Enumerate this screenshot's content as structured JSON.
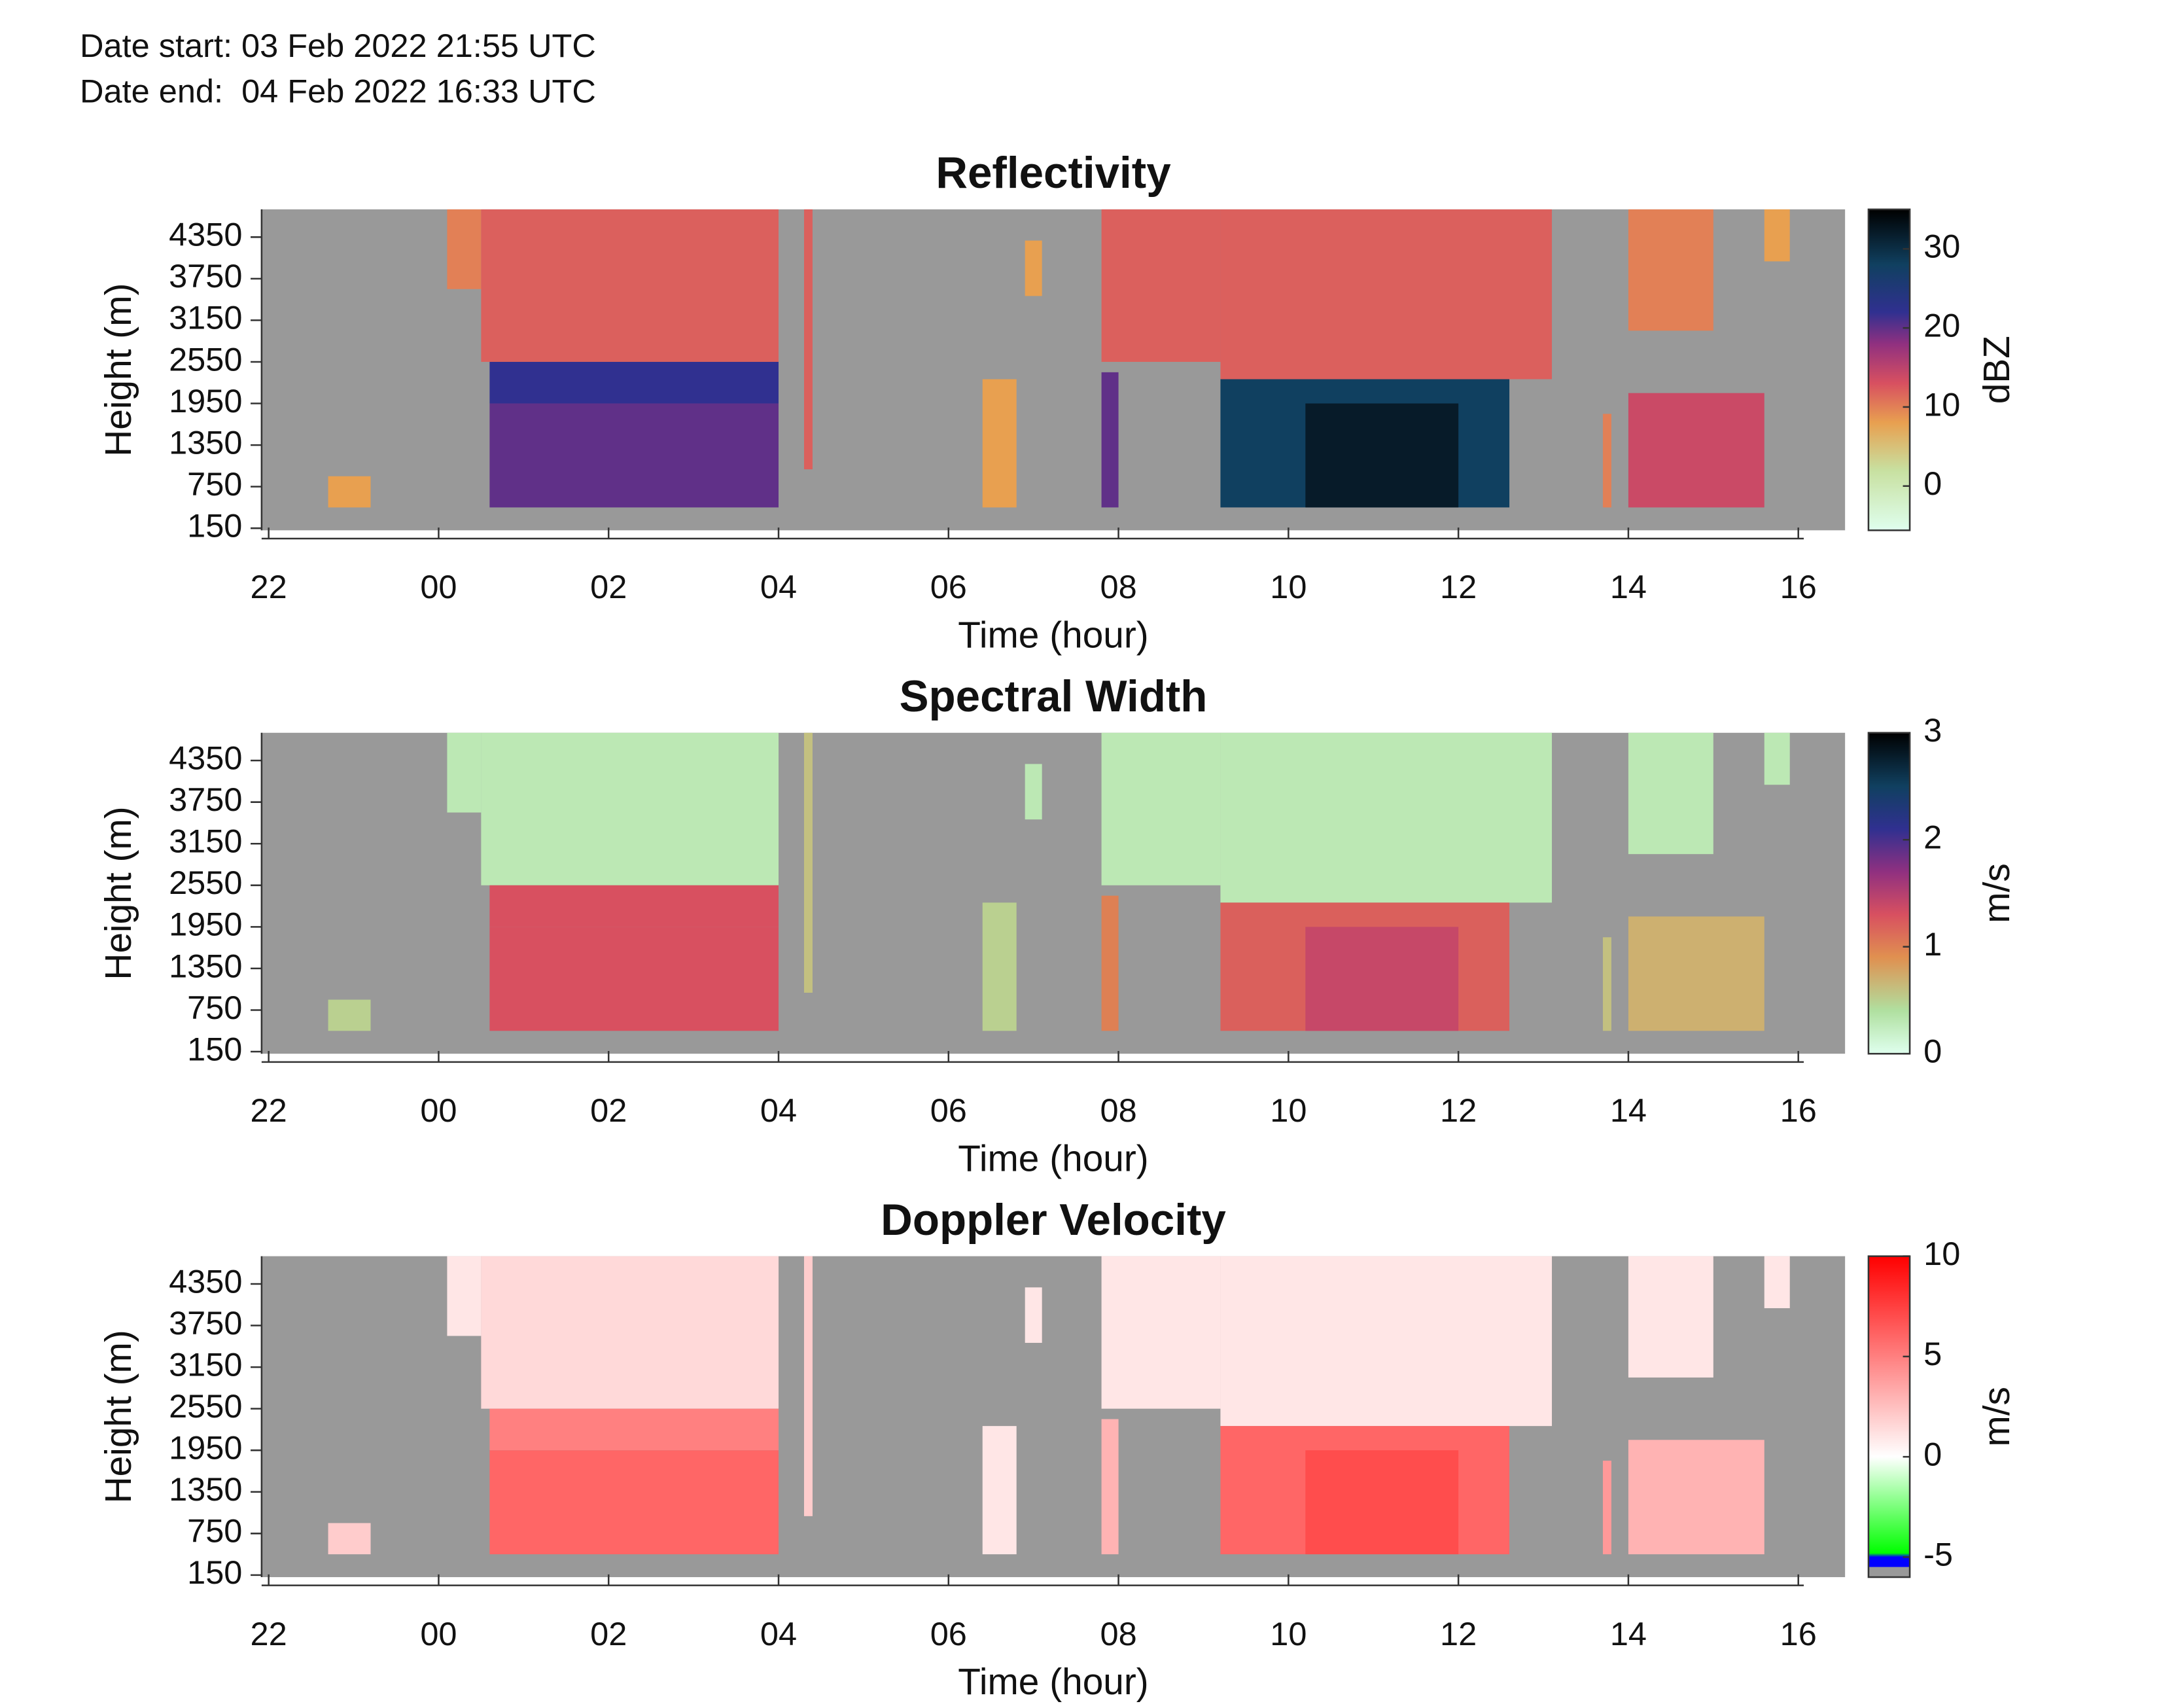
{
  "header": {
    "start": "Date start: 03 Feb 2022 21:55 UTC",
    "end": "Date end:  04 Feb 2022 16:33 UTC"
  },
  "chart_data": [
    {
      "type": "heatmap",
      "title": "Reflectivity",
      "xlabel": "Time (hour)",
      "ylabel": "Height (m)",
      "clabel": "dBZ",
      "xlim": [
        -2.083,
        16.55
      ],
      "ylim": [
        120,
        4750
      ],
      "xticks": [
        {
          "value": -2,
          "label": "22"
        },
        {
          "value": 0,
          "label": "00"
        },
        {
          "value": 2,
          "label": "02"
        },
        {
          "value": 4,
          "label": "04"
        },
        {
          "value": 6,
          "label": "06"
        },
        {
          "value": 8,
          "label": "08"
        },
        10,
        12,
        14,
        16
      ],
      "yticks": [
        150,
        750,
        1350,
        1950,
        2550,
        3150,
        3750,
        4350
      ],
      "clim": [
        -5.6,
        35
      ],
      "cticks": [
        0,
        10,
        20,
        30
      ],
      "background": "#999999",
      "colormap": [
        {
          "value": -5.6,
          "color": "#dfffee"
        },
        {
          "value": 2,
          "color": "#c8e0a0"
        },
        {
          "value": 8,
          "color": "#e8a050"
        },
        {
          "value": 13,
          "color": "#d85060"
        },
        {
          "value": 18,
          "color": "#903080"
        },
        {
          "value": 22,
          "color": "#303090"
        },
        {
          "value": 28,
          "color": "#104060"
        },
        {
          "value": 35,
          "color": "#000000"
        }
      ],
      "cells": [
        {
          "x": [
            -1.3,
            -0.8
          ],
          "y": [
            450,
            900
          ],
          "value": 8
        },
        {
          "x": [
            0.1,
            0.5
          ],
          "y": [
            3600,
            4750
          ],
          "value": 10
        },
        {
          "x": [
            0.5,
            4.0
          ],
          "y": [
            2550,
            4750
          ],
          "value": 12
        },
        {
          "x": [
            0.6,
            4.0
          ],
          "y": [
            1950,
            2550
          ],
          "value": 22
        },
        {
          "x": [
            0.6,
            4.0
          ],
          "y": [
            450,
            1950
          ],
          "value": 20
        },
        {
          "x": [
            4.3,
            4.4
          ],
          "y": [
            1000,
            4750
          ],
          "value": 12
        },
        {
          "x": [
            6.4,
            6.8
          ],
          "y": [
            450,
            2300
          ],
          "value": 8
        },
        {
          "x": [
            6.9,
            7.1
          ],
          "y": [
            3500,
            4300
          ],
          "value": 8
        },
        {
          "x": [
            7.8,
            9.2
          ],
          "y": [
            2550,
            4750
          ],
          "value": 12
        },
        {
          "x": [
            7.8,
            8.0
          ],
          "y": [
            450,
            2400
          ],
          "value": 20
        },
        {
          "x": [
            9.2,
            13.1
          ],
          "y": [
            2300,
            4750
          ],
          "value": 12
        },
        {
          "x": [
            9.2,
            12.6
          ],
          "y": [
            450,
            2300
          ],
          "value": 28
        },
        {
          "x": [
            10.2,
            12.0
          ],
          "y": [
            450,
            1950
          ],
          "value": 32
        },
        {
          "x": [
            13.7,
            13.8
          ],
          "y": [
            450,
            1800
          ],
          "value": 10
        },
        {
          "x": [
            14.0,
            15.6
          ],
          "y": [
            450,
            2100
          ],
          "value": 14
        },
        {
          "x": [
            14.0,
            15.0
          ],
          "y": [
            3000,
            4750
          ],
          "value": 10
        },
        {
          "x": [
            15.6,
            15.9
          ],
          "y": [
            4000,
            4750
          ],
          "value": 8
        }
      ]
    },
    {
      "type": "heatmap",
      "title": "Spectral Width",
      "xlabel": "Time (hour)",
      "ylabel": "Height (m)",
      "clabel": "m/s",
      "xlim": [
        -2.083,
        16.55
      ],
      "ylim": [
        120,
        4750
      ],
      "xticks": [
        {
          "value": -2,
          "label": "22"
        },
        {
          "value": 0,
          "label": "00"
        },
        {
          "value": 2,
          "label": "02"
        },
        {
          "value": 4,
          "label": "04"
        },
        {
          "value": 6,
          "label": "06"
        },
        {
          "value": 8,
          "label": "08"
        },
        10,
        12,
        14,
        16
      ],
      "yticks": [
        150,
        750,
        1350,
        1950,
        2550,
        3150,
        3750,
        4350
      ],
      "clim": [
        0,
        3
      ],
      "cticks": [
        0,
        1,
        2,
        3
      ],
      "background": "#999999",
      "colormap": [
        {
          "value": 0,
          "color": "#dfffee"
        },
        {
          "value": 0.4,
          "color": "#b0e0a0"
        },
        {
          "value": 0.9,
          "color": "#e09050"
        },
        {
          "value": 1.3,
          "color": "#d85060"
        },
        {
          "value": 1.7,
          "color": "#903080"
        },
        {
          "value": 2.1,
          "color": "#303090"
        },
        {
          "value": 2.5,
          "color": "#104060"
        },
        {
          "value": 3,
          "color": "#000000"
        }
      ],
      "cells": [
        {
          "x": [
            -1.3,
            -0.8
          ],
          "y": [
            450,
            900
          ],
          "value": 0.5
        },
        {
          "x": [
            0.1,
            0.5
          ],
          "y": [
            3600,
            4750
          ],
          "value": 0.3
        },
        {
          "x": [
            0.5,
            4.0
          ],
          "y": [
            2550,
            4750
          ],
          "value": 0.3
        },
        {
          "x": [
            0.6,
            4.0
          ],
          "y": [
            1950,
            2550
          ],
          "value": 1.3
        },
        {
          "x": [
            0.6,
            4.0
          ],
          "y": [
            450,
            1950
          ],
          "value": 1.3
        },
        {
          "x": [
            4.3,
            4.4
          ],
          "y": [
            1000,
            4750
          ],
          "value": 0.6
        },
        {
          "x": [
            6.4,
            6.8
          ],
          "y": [
            450,
            2300
          ],
          "value": 0.5
        },
        {
          "x": [
            6.9,
            7.1
          ],
          "y": [
            3500,
            4300
          ],
          "value": 0.3
        },
        {
          "x": [
            7.8,
            9.2
          ],
          "y": [
            2550,
            4750
          ],
          "value": 0.3
        },
        {
          "x": [
            7.8,
            8.0
          ],
          "y": [
            450,
            2400
          ],
          "value": 1.0
        },
        {
          "x": [
            9.2,
            13.1
          ],
          "y": [
            2300,
            4750
          ],
          "value": 0.3
        },
        {
          "x": [
            9.2,
            12.6
          ],
          "y": [
            450,
            2300
          ],
          "value": 1.2
        },
        {
          "x": [
            10.2,
            12.0
          ],
          "y": [
            450,
            1950
          ],
          "value": 1.4
        },
        {
          "x": [
            13.7,
            13.8
          ],
          "y": [
            450,
            1800
          ],
          "value": 0.6
        },
        {
          "x": [
            14.0,
            15.6
          ],
          "y": [
            450,
            2100
          ],
          "value": 0.7
        },
        {
          "x": [
            14.0,
            15.0
          ],
          "y": [
            3000,
            4750
          ],
          "value": 0.3
        },
        {
          "x": [
            15.6,
            15.9
          ],
          "y": [
            4000,
            4750
          ],
          "value": 0.3
        }
      ]
    },
    {
      "type": "heatmap",
      "title": "Doppler Velocity",
      "xlabel": "Time (hour)",
      "ylabel": "Height (m)",
      "clabel": "m/s",
      "xlim": [
        -2.083,
        16.55
      ],
      "ylim": [
        120,
        4750
      ],
      "xticks": [
        {
          "value": -2,
          "label": "22"
        },
        {
          "value": 0,
          "label": "00"
        },
        {
          "value": 2,
          "label": "02"
        },
        {
          "value": 4,
          "label": "04"
        },
        {
          "value": 6,
          "label": "06"
        },
        {
          "value": 8,
          "label": "08"
        },
        10,
        12,
        14,
        16
      ],
      "yticks": [
        150,
        750,
        1350,
        1950,
        2550,
        3150,
        3750,
        4350
      ],
      "clim": [
        -6,
        10
      ],
      "cticks": [
        -5,
        0,
        5,
        10
      ],
      "background": "#999999",
      "colormap": [
        {
          "value": -6,
          "color": "#999999"
        },
        {
          "value": -5.5,
          "color": "#999999"
        },
        {
          "value": -5.5,
          "color": "#0000ff"
        },
        {
          "value": -5,
          "color": "#0000ff"
        },
        {
          "value": -4.8,
          "color": "#00ff00"
        },
        {
          "value": 0,
          "color": "#ffffff"
        },
        {
          "value": 10,
          "color": "#ff0000"
        }
      ],
      "cells": [
        {
          "x": [
            -1.3,
            -0.8
          ],
          "y": [
            450,
            900
          ],
          "value": 2
        },
        {
          "x": [
            0.1,
            0.5
          ],
          "y": [
            3600,
            4750
          ],
          "value": 1
        },
        {
          "x": [
            0.5,
            4.0
          ],
          "y": [
            2550,
            4750
          ],
          "value": 1.5
        },
        {
          "x": [
            0.6,
            4.0
          ],
          "y": [
            1950,
            2550
          ],
          "value": 5
        },
        {
          "x": [
            0.6,
            4.0
          ],
          "y": [
            450,
            1950
          ],
          "value": 6
        },
        {
          "x": [
            4.3,
            4.4
          ],
          "y": [
            1000,
            4750
          ],
          "value": 2
        },
        {
          "x": [
            6.4,
            6.8
          ],
          "y": [
            450,
            2300
          ],
          "value": 1
        },
        {
          "x": [
            6.9,
            7.1
          ],
          "y": [
            3500,
            4300
          ],
          "value": 1
        },
        {
          "x": [
            7.8,
            9.2
          ],
          "y": [
            2550,
            4750
          ],
          "value": 1
        },
        {
          "x": [
            7.8,
            8.0
          ],
          "y": [
            450,
            2400
          ],
          "value": 3
        },
        {
          "x": [
            9.2,
            13.1
          ],
          "y": [
            2300,
            4750
          ],
          "value": 1
        },
        {
          "x": [
            9.2,
            12.6
          ],
          "y": [
            450,
            2300
          ],
          "value": 6
        },
        {
          "x": [
            10.2,
            12.0
          ],
          "y": [
            450,
            1950
          ],
          "value": 7
        },
        {
          "x": [
            13.7,
            13.8
          ],
          "y": [
            450,
            1800
          ],
          "value": 4
        },
        {
          "x": [
            14.0,
            15.6
          ],
          "y": [
            450,
            2100
          ],
          "value": 3
        },
        {
          "x": [
            14.0,
            15.0
          ],
          "y": [
            3000,
            4750
          ],
          "value": 1
        },
        {
          "x": [
            15.6,
            15.9
          ],
          "y": [
            4000,
            4750
          ],
          "value": 1
        }
      ]
    }
  ]
}
